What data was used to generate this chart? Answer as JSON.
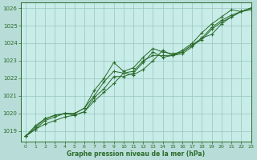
{
  "title": "",
  "xlabel": "Graphe pression niveau de la mer (hPa)",
  "xlim": [
    -0.5,
    23
  ],
  "ylim": [
    1018.4,
    1026.3
  ],
  "yticks": [
    1019,
    1020,
    1021,
    1022,
    1023,
    1024,
    1025,
    1026
  ],
  "xticks": [
    0,
    1,
    2,
    3,
    4,
    5,
    6,
    7,
    8,
    9,
    10,
    11,
    12,
    13,
    14,
    15,
    16,
    17,
    18,
    19,
    20,
    21,
    22,
    23
  ],
  "bg_color": "#b8ddd8",
  "plot_bg_color": "#c8ece8",
  "line_color": "#2a6b2a",
  "grid_color": "#98c4be",
  "series": [
    [
      1018.7,
      1019.1,
      1019.6,
      1019.8,
      1020.0,
      1019.9,
      1020.1,
      1020.7,
      1021.2,
      1021.7,
      1022.3,
      1022.2,
      1022.5,
      1023.0,
      1023.6,
      1023.3,
      1023.4,
      1023.8,
      1024.3,
      1024.5,
      1025.1,
      1025.5,
      1025.8,
      1025.9
    ],
    [
      1018.7,
      1019.1,
      1019.4,
      1019.6,
      1019.8,
      1019.9,
      1020.1,
      1020.9,
      1021.4,
      1022.1,
      1022.1,
      1022.3,
      1022.9,
      1023.5,
      1023.2,
      1023.3,
      1023.6,
      1024.0,
      1024.6,
      1025.1,
      1025.5,
      1025.9,
      1025.8,
      1026.0
    ],
    [
      1018.7,
      1019.2,
      1019.7,
      1019.9,
      1020.0,
      1020.0,
      1020.3,
      1021.0,
      1021.8,
      1022.4,
      1022.3,
      1022.4,
      1023.0,
      1023.3,
      1023.3,
      1023.3,
      1023.5,
      1023.9,
      1024.3,
      1024.9,
      1025.3,
      1025.6,
      1025.8,
      1026.0
    ],
    [
      1018.7,
      1019.3,
      1019.7,
      1019.9,
      1020.0,
      1020.0,
      1020.3,
      1021.3,
      1022.0,
      1022.9,
      1022.4,
      1022.6,
      1023.2,
      1023.7,
      1023.5,
      1023.4,
      1023.5,
      1023.9,
      1024.2,
      1024.8,
      1025.2,
      1025.5,
      1025.8,
      1026.0
    ]
  ]
}
